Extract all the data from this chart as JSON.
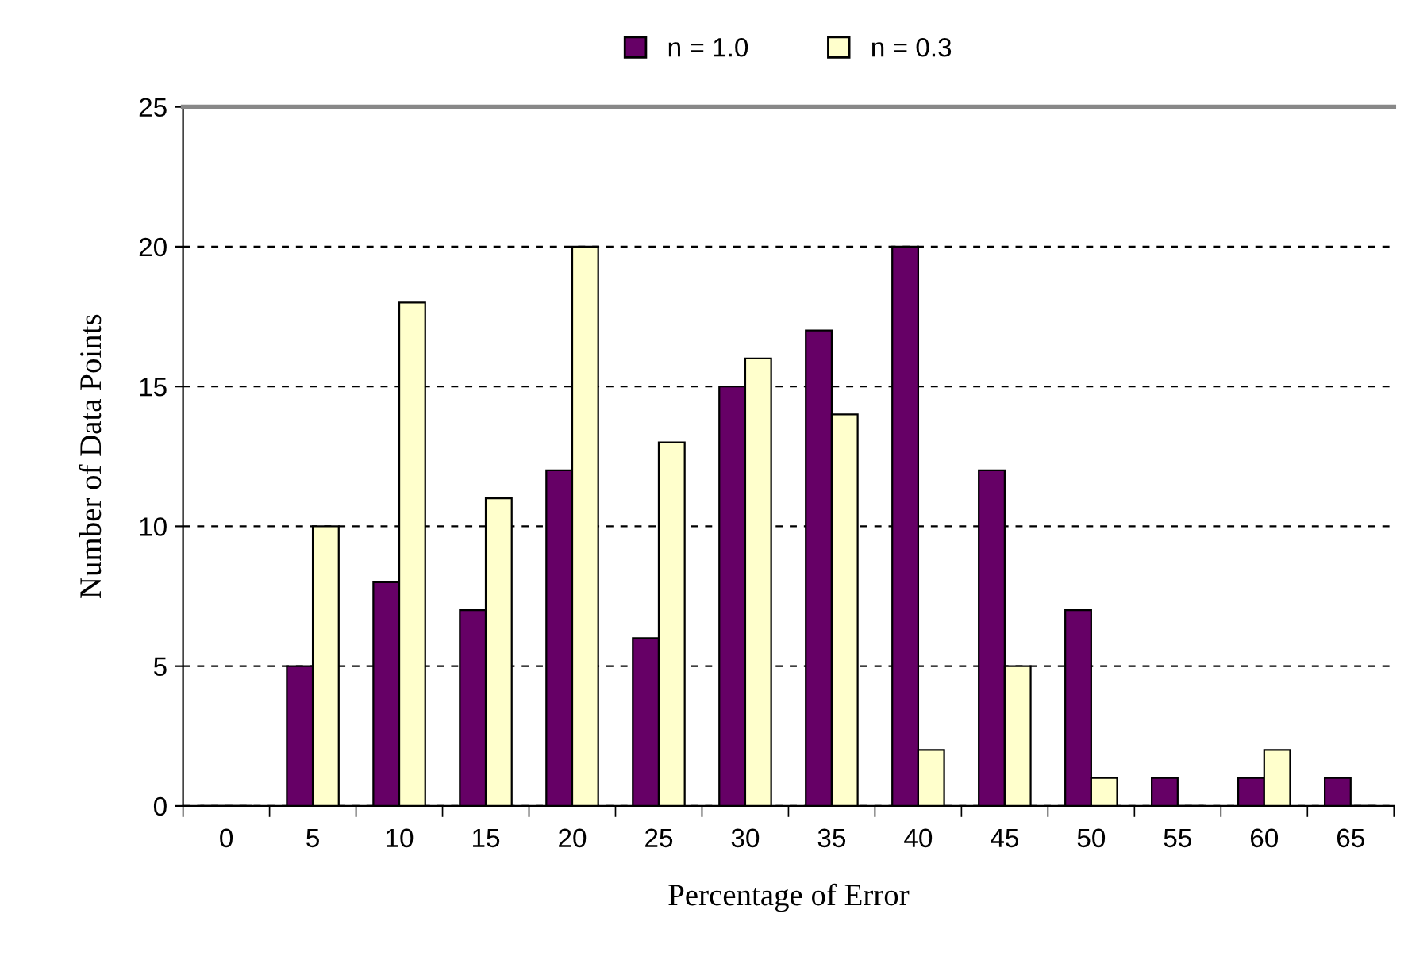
{
  "chart_data": {
    "type": "bar",
    "xlabel": "Percentage of Error",
    "ylabel": "Number of Data Points",
    "categories": [
      "0",
      "5",
      "10",
      "15",
      "20",
      "25",
      "30",
      "35",
      "40",
      "45",
      "50",
      "55",
      "60",
      "65"
    ],
    "series": [
      {
        "name": "n = 1.0",
        "color": "#660066",
        "values": [
          0,
          5,
          8,
          7,
          12,
          6,
          15,
          17,
          20,
          12,
          7,
          1,
          1,
          1
        ]
      },
      {
        "name": "n = 0.3",
        "color": "#ffffcc",
        "values": [
          0,
          10,
          18,
          11,
          20,
          13,
          16,
          14,
          2,
          5,
          1,
          0,
          2,
          0
        ]
      }
    ],
    "ylim": [
      0,
      25
    ],
    "yticks": [
      0,
      5,
      10,
      15,
      20,
      25
    ],
    "grid": "y",
    "legend": "top"
  }
}
